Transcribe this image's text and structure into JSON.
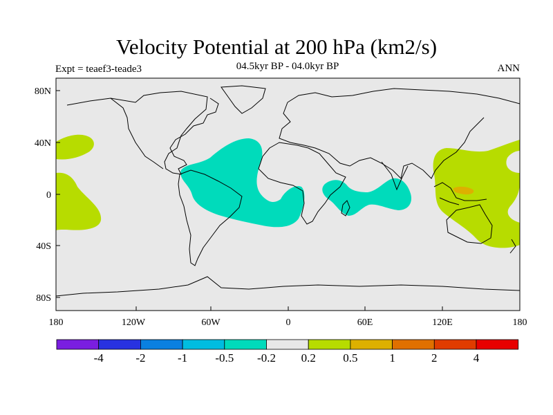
{
  "title": "Velocity Potential at 200 hPa (km2/s)",
  "subtitle": "04.5kyr BP - 04.0kyr BP",
  "experiment_label": "Expt = teaef3-teade3",
  "season_label": "ANN",
  "y_tick_labels": [
    "80N",
    "40N",
    "0",
    "40S",
    "80S"
  ],
  "x_tick_labels": [
    "180",
    "120W",
    "60W",
    "0",
    "60E",
    "120E",
    "180"
  ],
  "colorbar": {
    "colors": [
      "#7a1ee0",
      "#2832e0",
      "#0a80e0",
      "#00bde0",
      "#00dbbb",
      "#e8e8e8",
      "#b7dc00",
      "#ddb000",
      "#e07000",
      "#e03c00",
      "#e80000"
    ],
    "labels": [
      "-4",
      "-2",
      "-1",
      "-0.5",
      "-0.2",
      "0.2",
      "0.5",
      "1",
      "2",
      "4"
    ]
  },
  "colors": {
    "background": "#e8e8e8",
    "negative_fill": "#00dbbb",
    "positive_fill": "#b7dc00",
    "peak_fill": "#ddb000",
    "coastline": "#000000"
  }
}
